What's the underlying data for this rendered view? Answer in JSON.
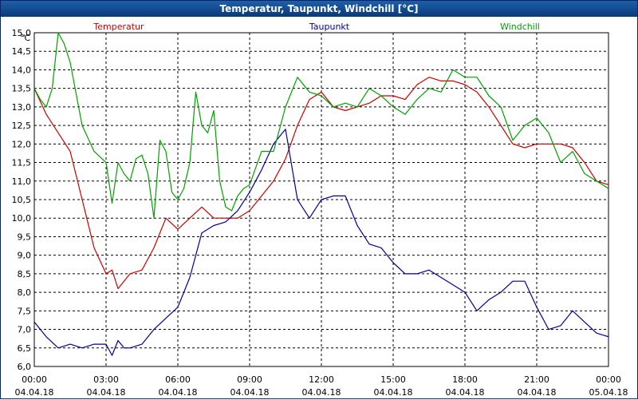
{
  "window": {
    "title": "Temperatur, Taupunkt, Windchill [°C]"
  },
  "chart_data": {
    "type": "line",
    "title": "Temperatur, Taupunkt, Windchill [°C]",
    "ylabel": "°C",
    "ylim": [
      6.0,
      15.0
    ],
    "xlim": [
      "2018-04-04 00:00",
      "2018-04-05 00:00"
    ],
    "grid": true,
    "legend": "top",
    "y_ticks": [
      "6,0",
      "6,5",
      "7,0",
      "7,5",
      "8,0",
      "8,5",
      "9,0",
      "9,5",
      "10,0",
      "10,5",
      "11,0",
      "11,5",
      "12,0",
      "12,5",
      "13,0",
      "13,5",
      "14,0",
      "14,5",
      "15,0"
    ],
    "x_ticks": [
      {
        "time": "00:00",
        "date": "04.04.18"
      },
      {
        "time": "03:00",
        "date": "04.04.18"
      },
      {
        "time": "06:00",
        "date": "04.04.18"
      },
      {
        "time": "09:00",
        "date": "04.04.18"
      },
      {
        "time": "12:00",
        "date": "04.04.18"
      },
      {
        "time": "15:00",
        "date": "04.04.18"
      },
      {
        "time": "18:00",
        "date": "04.04.18"
      },
      {
        "time": "21:00",
        "date": "04.04.18"
      },
      {
        "time": "00:00",
        "date": "05.04.18"
      }
    ],
    "series": [
      {
        "name": "Temperatur",
        "color": "#cc0000",
        "x": [
          "00:00",
          "00:30",
          "01:00",
          "01:30",
          "02:00",
          "02:30",
          "03:00",
          "03:15",
          "03:30",
          "03:45",
          "04:00",
          "04:30",
          "05:00",
          "05:30",
          "06:00",
          "06:30",
          "07:00",
          "07:30",
          "08:00",
          "08:30",
          "09:00",
          "09:30",
          "10:00",
          "10:30",
          "11:00",
          "11:30",
          "12:00",
          "12:30",
          "13:00",
          "13:30",
          "14:00",
          "14:30",
          "15:00",
          "15:30",
          "16:00",
          "16:30",
          "17:00",
          "17:30",
          "18:00",
          "18:30",
          "19:00",
          "19:30",
          "20:00",
          "20:30",
          "21:00",
          "21:30",
          "22:00",
          "22:30",
          "23:00",
          "23:30",
          "24:00"
        ],
        "y": [
          13.5,
          12.8,
          12.3,
          11.8,
          10.5,
          9.2,
          8.5,
          8.6,
          8.1,
          8.3,
          8.5,
          8.6,
          9.2,
          10.0,
          9.7,
          10.0,
          10.3,
          10.0,
          10.0,
          10.0,
          10.2,
          10.6,
          11.0,
          11.6,
          12.5,
          13.2,
          13.4,
          13.0,
          12.9,
          13.0,
          13.1,
          13.3,
          13.3,
          13.2,
          13.6,
          13.8,
          13.7,
          13.7,
          13.6,
          13.4,
          13.0,
          12.5,
          12.0,
          11.9,
          12.0,
          12.0,
          12.0,
          11.9,
          11.5,
          11.0,
          10.9
        ]
      },
      {
        "name": "Taupunkt",
        "color": "#00009c",
        "x": [
          "00:00",
          "00:30",
          "01:00",
          "01:30",
          "02:00",
          "02:30",
          "03:00",
          "03:15",
          "03:30",
          "03:45",
          "04:00",
          "04:30",
          "05:00",
          "05:30",
          "06:00",
          "06:30",
          "07:00",
          "07:30",
          "08:00",
          "08:30",
          "09:00",
          "09:30",
          "10:00",
          "10:30",
          "11:00",
          "11:30",
          "12:00",
          "12:30",
          "13:00",
          "13:30",
          "14:00",
          "14:30",
          "15:00",
          "15:30",
          "16:00",
          "16:30",
          "17:00",
          "17:30",
          "18:00",
          "18:30",
          "19:00",
          "19:30",
          "20:00",
          "20:30",
          "21:00",
          "21:30",
          "22:00",
          "22:30",
          "23:00",
          "23:30",
          "24:00"
        ],
        "y": [
          7.2,
          6.8,
          6.5,
          6.6,
          6.5,
          6.6,
          6.6,
          6.3,
          6.7,
          6.5,
          6.5,
          6.6,
          7.0,
          7.3,
          7.6,
          8.4,
          9.6,
          9.8,
          9.9,
          10.2,
          10.7,
          11.3,
          12.0,
          12.4,
          10.5,
          10.0,
          10.5,
          10.6,
          10.6,
          9.8,
          9.3,
          9.2,
          8.8,
          8.5,
          8.5,
          8.6,
          8.4,
          8.2,
          8.0,
          7.5,
          7.8,
          8.0,
          8.3,
          8.3,
          7.6,
          7.0,
          7.1,
          7.5,
          7.2,
          6.9,
          6.8
        ]
      },
      {
        "name": "Windchill",
        "color": "#00a000",
        "x": [
          "00:00",
          "00:15",
          "00:30",
          "00:45",
          "01:00",
          "01:15",
          "01:30",
          "02:00",
          "02:30",
          "03:00",
          "03:15",
          "03:30",
          "03:45",
          "04:00",
          "04:15",
          "04:30",
          "04:45",
          "05:00",
          "05:15",
          "05:30",
          "05:45",
          "06:00",
          "06:15",
          "06:30",
          "06:45",
          "07:00",
          "07:15",
          "07:30",
          "07:45",
          "08:00",
          "08:15",
          "08:30",
          "08:45",
          "09:00",
          "09:30",
          "10:00",
          "10:30",
          "11:00",
          "11:30",
          "12:00",
          "12:30",
          "13:00",
          "13:30",
          "14:00",
          "14:30",
          "15:00",
          "15:30",
          "16:00",
          "16:30",
          "17:00",
          "17:30",
          "18:00",
          "18:30",
          "19:00",
          "19:30",
          "20:00",
          "20:30",
          "21:00",
          "21:30",
          "22:00",
          "22:30",
          "23:00",
          "23:30",
          "24:00"
        ],
        "y": [
          13.5,
          13.2,
          13.0,
          13.5,
          15.0,
          14.7,
          14.2,
          12.5,
          11.8,
          11.5,
          10.4,
          11.5,
          11.2,
          11.0,
          11.6,
          11.7,
          11.2,
          10.0,
          12.1,
          11.8,
          10.7,
          10.5,
          10.8,
          11.5,
          13.4,
          12.5,
          12.3,
          12.9,
          11.0,
          10.3,
          10.2,
          10.6,
          10.8,
          10.9,
          11.8,
          11.8,
          13.0,
          13.8,
          13.4,
          13.3,
          13.0,
          13.1,
          13.0,
          13.5,
          13.3,
          13.0,
          12.8,
          13.2,
          13.5,
          13.4,
          14.0,
          13.8,
          13.8,
          13.3,
          13.0,
          12.1,
          12.5,
          12.7,
          12.3,
          11.5,
          11.8,
          11.2,
          11.0,
          10.8
        ]
      }
    ]
  }
}
